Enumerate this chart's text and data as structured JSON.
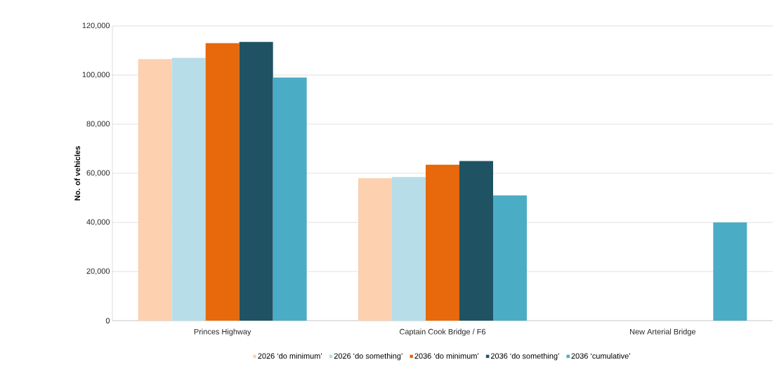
{
  "chart_data": {
    "type": "bar",
    "ylabel": "No. of vehicles",
    "categories": [
      "Princes Highway",
      "Captain Cook Bridge / F6",
      "New Arterial Bridge"
    ],
    "series": [
      {
        "name": "2026 ‘do minimum’",
        "color": "#fdd0b0",
        "values": [
          106500,
          58000,
          null
        ]
      },
      {
        "name": "2026 ‘do something’",
        "color": "#b7dde8",
        "values": [
          107000,
          58500,
          null
        ]
      },
      {
        "name": "2036 ‘do minimum’",
        "color": "#e8680c",
        "values": [
          113000,
          63500,
          null
        ]
      },
      {
        "name": "2036 ‘do something’",
        "color": "#1f5364",
        "values": [
          113500,
          65000,
          null
        ]
      },
      {
        "name": "2036 ‘cumulative’",
        "color": "#4bacc6",
        "values": [
          99000,
          51000,
          40000
        ]
      }
    ],
    "ylim": [
      0,
      120000
    ],
    "yticks": [
      0,
      {
        "value": 20000,
        "label": "20,000"
      },
      {
        "value": 40000,
        "label": "40,000"
      },
      {
        "value": 60000,
        "label": "60,000"
      },
      {
        "value": 80000,
        "label": "80,000"
      },
      {
        "value": 100000,
        "label": "100,000"
      },
      {
        "value": 120000,
        "label": "120,000"
      }
    ],
    "grid": "y",
    "legend": "bottom"
  }
}
